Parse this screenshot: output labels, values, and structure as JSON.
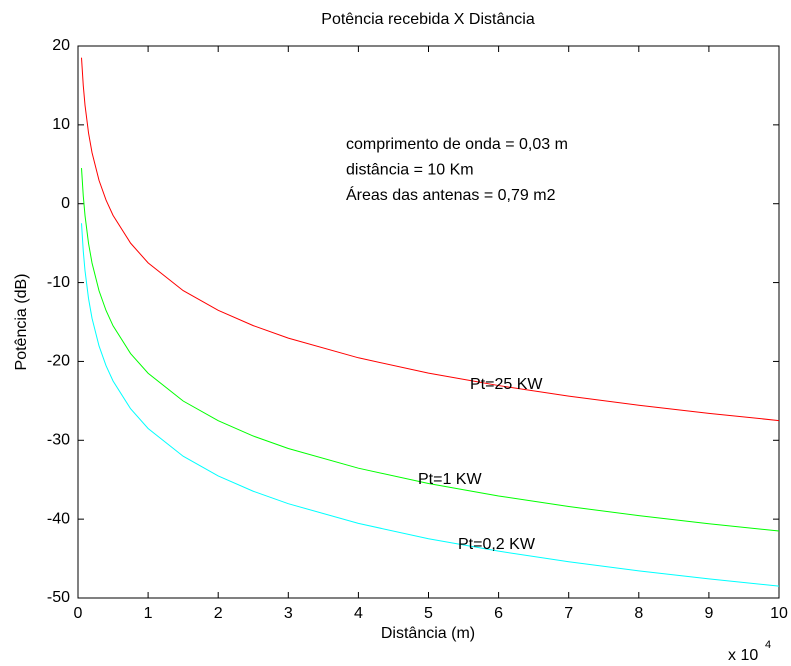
{
  "chart_data": {
    "type": "line",
    "title": "Potência recebida   X   Distância",
    "xlabel": "Distância (m)",
    "ylabel": "Potência (dB)",
    "x_multiplier": {
      "base": "x 10",
      "exponent": "4"
    },
    "annotations": [
      "comprimento de onda = 0,03 m",
      "distância = 10 Km",
      "Áreas das antenas = 0,79 m2"
    ],
    "x": [
      0.05,
      0.075,
      0.1,
      0.15,
      0.2,
      0.3,
      0.4,
      0.5,
      0.75,
      1,
      1.5,
      2,
      2.5,
      3,
      4,
      5,
      6,
      7,
      8,
      9,
      10
    ],
    "series": [
      {
        "name": "Pt=25 KW",
        "color": "#ff0000",
        "values": [
          18.52,
          15.0,
          12.5,
          8.98,
          6.48,
          2.96,
          0.46,
          -1.48,
          -5.0,
          -7.5,
          -11.02,
          -13.52,
          -15.46,
          -17.04,
          -19.54,
          -21.48,
          -23.06,
          -24.4,
          -25.56,
          -26.58,
          -27.5
        ]
      },
      {
        "name": "Pt=1 KW",
        "color": "#00ff00",
        "values": [
          4.52,
          1.0,
          -1.5,
          -5.02,
          -7.52,
          -11.04,
          -13.54,
          -15.48,
          -19.0,
          -21.5,
          -25.02,
          -27.52,
          -29.46,
          -31.04,
          -33.54,
          -35.48,
          -37.06,
          -38.4,
          -39.56,
          -40.58,
          -41.5
        ]
      },
      {
        "name": "Pt=0,2 KW",
        "color": "#00ffff",
        "values": [
          -2.48,
          -6.0,
          -8.5,
          -12.02,
          -14.52,
          -18.04,
          -20.54,
          -22.48,
          -26.0,
          -28.5,
          -32.02,
          -34.52,
          -36.46,
          -38.04,
          -40.54,
          -42.48,
          -44.06,
          -45.4,
          -46.56,
          -47.58,
          -48.5
        ]
      }
    ],
    "xlim": [
      0,
      10
    ],
    "xticks": [
      0,
      1,
      2,
      3,
      4,
      5,
      6,
      7,
      8,
      9,
      10
    ],
    "ylim": [
      -50,
      20
    ],
    "yticks": [
      -50,
      -40,
      -30,
      -20,
      -10,
      0,
      10,
      20
    ],
    "grid": false
  }
}
